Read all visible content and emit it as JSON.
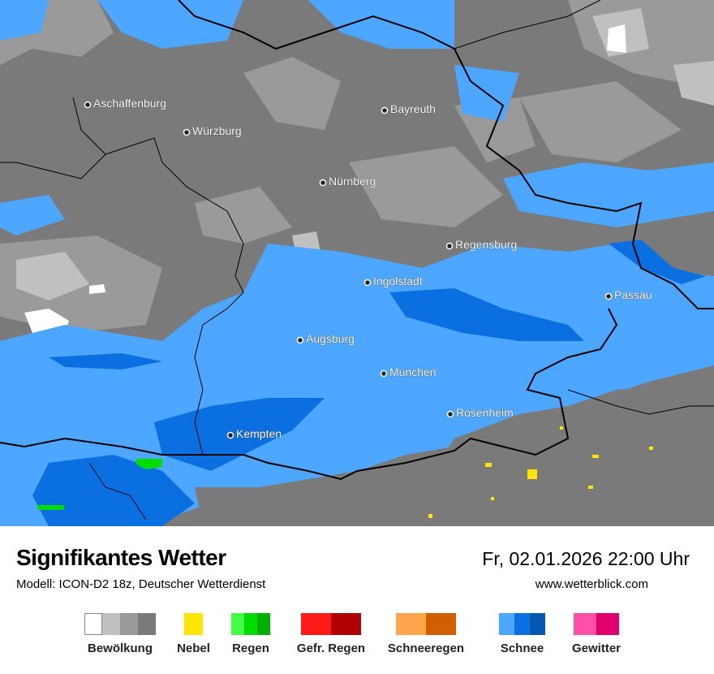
{
  "header": {
    "title": "Signifikantes Wetter",
    "model": "Modell: ICON-D2 18z, Deutscher Wetterdienst",
    "datetime": "Fr, 02.01.2026 22:00 Uhr",
    "website": "www.wetterblick.com"
  },
  "map": {
    "cities": [
      {
        "name": "Aschaffenburg"
      },
      {
        "name": "Würzburg"
      },
      {
        "name": "Bayreuth"
      },
      {
        "name": "Nürnberg"
      },
      {
        "name": "Regensburg"
      },
      {
        "name": "Ingolstadt"
      },
      {
        "name": "Passau"
      },
      {
        "name": "Augsburg"
      },
      {
        "name": "München"
      },
      {
        "name": "Rosenheim"
      },
      {
        "name": "Kempten"
      }
    ]
  },
  "legend": [
    {
      "label": "Bewölkung",
      "colors": [
        "#ffffff",
        "#c0c0c0",
        "#999999",
        "#7a7a7a"
      ]
    },
    {
      "label": "Nebel",
      "colors": [
        "#ffe600"
      ]
    },
    {
      "label": "Regen",
      "colors": [
        "#44ff44",
        "#00dd00",
        "#00b000"
      ]
    },
    {
      "label": "Gefr. Regen",
      "colors": [
        "#ff1a1a",
        "#b00000"
      ]
    },
    {
      "label": "Schneeregen",
      "colors": [
        "#ffa64d",
        "#d15f00"
      ]
    },
    {
      "label": "Schnee",
      "colors": [
        "#4da6ff",
        "#0a6fe0",
        "#0557b0"
      ]
    },
    {
      "label": "Gewitter",
      "colors": [
        "#ff4fa6",
        "#e0006e"
      ]
    }
  ]
}
